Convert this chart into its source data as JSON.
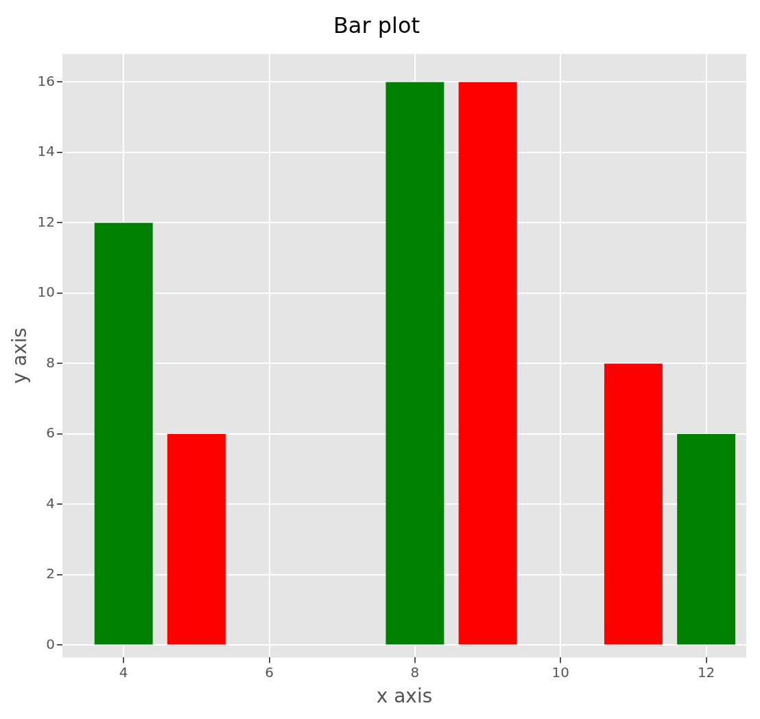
{
  "chart_data": {
    "type": "bar",
    "title": "Bar plot",
    "xlabel": "x axis",
    "ylabel": "y axis",
    "x": [
      4,
      5,
      8,
      9,
      11,
      12
    ],
    "values": [
      12,
      6,
      16,
      16,
      8,
      6
    ],
    "colors": [
      "#008000",
      "#ff0000",
      "#008000",
      "#ff0000",
      "#ff0000",
      "#008000"
    ],
    "xlim": [
      3.16,
      12.55
    ],
    "xticks": [
      4,
      6,
      8,
      10,
      12
    ],
    "ylim": [
      -0.35,
      16.8
    ],
    "yticks": [
      0,
      2,
      4,
      6,
      8,
      10,
      12,
      14,
      16
    ],
    "grid": true,
    "legend": false
  }
}
